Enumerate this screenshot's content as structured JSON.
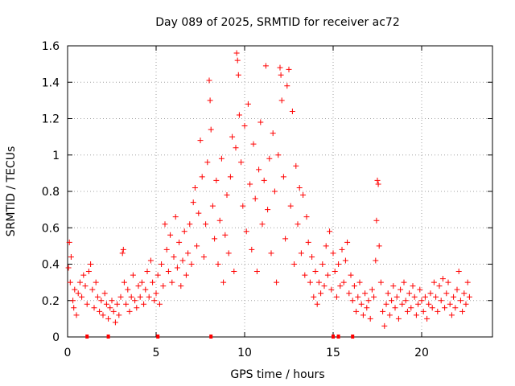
{
  "chart_data": {
    "type": "scatter",
    "title": "Day 089 of 2025, SRMTID for receiver ac72",
    "xlabel": "GPS time / hours",
    "ylabel": "SRMTID / TECUs",
    "xlim": [
      0,
      24
    ],
    "ylim": [
      0,
      1.6
    ],
    "xticks": [
      0,
      5,
      10,
      15,
      20
    ],
    "yticks": [
      0,
      0.2,
      0.4,
      0.6,
      0.8,
      1,
      1.2,
      1.4,
      1.6
    ],
    "xtick_labels": [
      "0",
      "5",
      "10",
      "15",
      "20"
    ],
    "ytick_labels": [
      "0",
      "0.2",
      "0.4",
      "0.6",
      "0.8",
      "1",
      "1.2",
      "1.4",
      "1.6"
    ],
    "grid": true,
    "marker": "+",
    "series_color": "#ff0000",
    "zero_markers_x": [
      1.1,
      2.3,
      5.1,
      8.1,
      15.0,
      15.3,
      16.1
    ],
    "series": [
      {
        "name": "SRMTID",
        "points": [
          [
            0.05,
            0.38
          ],
          [
            0.1,
            0.52
          ],
          [
            0.15,
            0.3
          ],
          [
            0.2,
            0.44
          ],
          [
            0.3,
            0.2
          ],
          [
            0.35,
            0.16
          ],
          [
            0.4,
            0.26
          ],
          [
            0.5,
            0.12
          ],
          [
            0.6,
            0.24
          ],
          [
            0.7,
            0.3
          ],
          [
            0.8,
            0.22
          ],
          [
            0.9,
            0.34
          ],
          [
            1.0,
            0.28
          ],
          [
            1.1,
            0.18
          ],
          [
            1.2,
            0.36
          ],
          [
            1.3,
            0.4
          ],
          [
            1.4,
            0.26
          ],
          [
            1.5,
            0.16
          ],
          [
            1.6,
            0.3
          ],
          [
            1.7,
            0.22
          ],
          [
            1.8,
            0.14
          ],
          [
            1.9,
            0.2
          ],
          [
            2.0,
            0.12
          ],
          [
            2.1,
            0.24
          ],
          [
            2.2,
            0.18
          ],
          [
            2.3,
            0.1
          ],
          [
            2.4,
            0.16
          ],
          [
            2.5,
            0.2
          ],
          [
            2.6,
            0.14
          ],
          [
            2.7,
            0.08
          ],
          [
            2.8,
            0.18
          ],
          [
            2.9,
            0.12
          ],
          [
            3.0,
            0.22
          ],
          [
            3.1,
            0.46
          ],
          [
            3.15,
            0.48
          ],
          [
            3.2,
            0.3
          ],
          [
            3.3,
            0.18
          ],
          [
            3.4,
            0.26
          ],
          [
            3.5,
            0.14
          ],
          [
            3.6,
            0.22
          ],
          [
            3.7,
            0.34
          ],
          [
            3.8,
            0.2
          ],
          [
            3.9,
            0.16
          ],
          [
            4.0,
            0.28
          ],
          [
            4.1,
            0.22
          ],
          [
            4.2,
            0.3
          ],
          [
            4.3,
            0.18
          ],
          [
            4.4,
            0.26
          ],
          [
            4.5,
            0.36
          ],
          [
            4.6,
            0.22
          ],
          [
            4.7,
            0.42
          ],
          [
            4.8,
            0.3
          ],
          [
            4.9,
            0.2
          ],
          [
            5.0,
            0.24
          ],
          [
            5.1,
            0.34
          ],
          [
            5.2,
            0.18
          ],
          [
            5.3,
            0.4
          ],
          [
            5.4,
            0.28
          ],
          [
            5.5,
            0.62
          ],
          [
            5.6,
            0.48
          ],
          [
            5.7,
            0.36
          ],
          [
            5.8,
            0.56
          ],
          [
            5.9,
            0.3
          ],
          [
            6.0,
            0.44
          ],
          [
            6.1,
            0.66
          ],
          [
            6.2,
            0.38
          ],
          [
            6.3,
            0.52
          ],
          [
            6.4,
            0.28
          ],
          [
            6.5,
            0.42
          ],
          [
            6.6,
            0.58
          ],
          [
            6.7,
            0.34
          ],
          [
            6.8,
            0.46
          ],
          [
            6.9,
            0.62
          ],
          [
            7.0,
            0.4
          ],
          [
            7.1,
            0.74
          ],
          [
            7.2,
            0.82
          ],
          [
            7.3,
            0.5
          ],
          [
            7.4,
            0.68
          ],
          [
            7.5,
            1.08
          ],
          [
            7.6,
            0.88
          ],
          [
            7.7,
            0.44
          ],
          [
            7.8,
            0.62
          ],
          [
            7.9,
            0.96
          ],
          [
            8.0,
            1.41
          ],
          [
            8.05,
            1.3
          ],
          [
            8.1,
            1.14
          ],
          [
            8.2,
            0.72
          ],
          [
            8.3,
            0.54
          ],
          [
            8.4,
            0.86
          ],
          [
            8.5,
            0.4
          ],
          [
            8.6,
            0.64
          ],
          [
            8.7,
            0.98
          ],
          [
            8.8,
            0.3
          ],
          [
            8.9,
            0.56
          ],
          [
            9.0,
            0.78
          ],
          [
            9.1,
            0.46
          ],
          [
            9.2,
            0.88
          ],
          [
            9.3,
            1.1
          ],
          [
            9.4,
            0.36
          ],
          [
            9.5,
            1.04
          ],
          [
            9.55,
            1.56
          ],
          [
            9.6,
            1.52
          ],
          [
            9.65,
            1.44
          ],
          [
            9.7,
            1.22
          ],
          [
            9.8,
            0.96
          ],
          [
            9.9,
            0.72
          ],
          [
            10.0,
            1.16
          ],
          [
            10.1,
            0.58
          ],
          [
            10.2,
            1.28
          ],
          [
            10.3,
            0.84
          ],
          [
            10.4,
            0.48
          ],
          [
            10.5,
            1.06
          ],
          [
            10.6,
            0.76
          ],
          [
            10.7,
            0.36
          ],
          [
            10.8,
            0.92
          ],
          [
            10.9,
            1.18
          ],
          [
            11.0,
            0.62
          ],
          [
            11.1,
            0.86
          ],
          [
            11.2,
            1.49
          ],
          [
            11.3,
            0.7
          ],
          [
            11.4,
            0.98
          ],
          [
            11.5,
            0.46
          ],
          [
            11.6,
            1.12
          ],
          [
            11.7,
            0.8
          ],
          [
            11.8,
            0.3
          ],
          [
            11.9,
            1.0
          ],
          [
            12.0,
            1.48
          ],
          [
            12.05,
            1.44
          ],
          [
            12.1,
            1.3
          ],
          [
            12.2,
            0.88
          ],
          [
            12.3,
            0.54
          ],
          [
            12.4,
            1.38
          ],
          [
            12.5,
            1.47
          ],
          [
            12.6,
            0.72
          ],
          [
            12.7,
            1.24
          ],
          [
            12.8,
            0.4
          ],
          [
            12.9,
            0.94
          ],
          [
            13.0,
            0.62
          ],
          [
            13.1,
            0.82
          ],
          [
            13.2,
            0.46
          ],
          [
            13.3,
            0.78
          ],
          [
            13.4,
            0.34
          ],
          [
            13.5,
            0.66
          ],
          [
            13.6,
            0.52
          ],
          [
            13.7,
            0.3
          ],
          [
            13.8,
            0.44
          ],
          [
            13.9,
            0.22
          ],
          [
            14.0,
            0.36
          ],
          [
            14.1,
            0.18
          ],
          [
            14.2,
            0.3
          ],
          [
            14.3,
            0.24
          ],
          [
            14.4,
            0.4
          ],
          [
            14.5,
            0.28
          ],
          [
            14.6,
            0.5
          ],
          [
            14.7,
            0.34
          ],
          [
            14.8,
            0.58
          ],
          [
            14.9,
            0.26
          ],
          [
            15.0,
            0.46
          ],
          [
            15.1,
            0.36
          ],
          [
            15.2,
            0.22
          ],
          [
            15.3,
            0.4
          ],
          [
            15.4,
            0.28
          ],
          [
            15.5,
            0.48
          ],
          [
            15.6,
            0.3
          ],
          [
            15.7,
            0.42
          ],
          [
            15.8,
            0.52
          ],
          [
            15.9,
            0.24
          ],
          [
            16.0,
            0.34
          ],
          [
            16.1,
            0.2
          ],
          [
            16.2,
            0.28
          ],
          [
            16.3,
            0.14
          ],
          [
            16.4,
            0.22
          ],
          [
            16.5,
            0.3
          ],
          [
            16.6,
            0.18
          ],
          [
            16.7,
            0.12
          ],
          [
            16.8,
            0.24
          ],
          [
            16.9,
            0.16
          ],
          [
            17.0,
            0.2
          ],
          [
            17.1,
            0.1
          ],
          [
            17.2,
            0.26
          ],
          [
            17.3,
            0.22
          ],
          [
            17.4,
            0.42
          ],
          [
            17.45,
            0.64
          ],
          [
            17.5,
            0.86
          ],
          [
            17.55,
            0.84
          ],
          [
            17.6,
            0.5
          ],
          [
            17.7,
            0.3
          ],
          [
            17.8,
            0.14
          ],
          [
            17.9,
            0.06
          ],
          [
            18.0,
            0.18
          ],
          [
            18.1,
            0.24
          ],
          [
            18.2,
            0.12
          ],
          [
            18.3,
            0.2
          ],
          [
            18.4,
            0.28
          ],
          [
            18.5,
            0.16
          ],
          [
            18.6,
            0.22
          ],
          [
            18.7,
            0.1
          ],
          [
            18.8,
            0.26
          ],
          [
            18.9,
            0.18
          ],
          [
            19.0,
            0.3
          ],
          [
            19.1,
            0.2
          ],
          [
            19.2,
            0.14
          ],
          [
            19.3,
            0.24
          ],
          [
            19.4,
            0.16
          ],
          [
            19.5,
            0.28
          ],
          [
            19.6,
            0.22
          ],
          [
            19.7,
            0.12
          ],
          [
            19.8,
            0.18
          ],
          [
            19.9,
            0.26
          ],
          [
            20.0,
            0.2
          ],
          [
            20.1,
            0.14
          ],
          [
            20.2,
            0.22
          ],
          [
            20.3,
            0.1
          ],
          [
            20.4,
            0.18
          ],
          [
            20.5,
            0.24
          ],
          [
            20.6,
            0.16
          ],
          [
            20.7,
            0.3
          ],
          [
            20.8,
            0.22
          ],
          [
            20.9,
            0.14
          ],
          [
            21.0,
            0.28
          ],
          [
            21.1,
            0.2
          ],
          [
            21.2,
            0.32
          ],
          [
            21.3,
            0.16
          ],
          [
            21.4,
            0.24
          ],
          [
            21.5,
            0.3
          ],
          [
            21.6,
            0.18
          ],
          [
            21.7,
            0.12
          ],
          [
            21.8,
            0.22
          ],
          [
            21.9,
            0.16
          ],
          [
            22.0,
            0.26
          ],
          [
            22.1,
            0.36
          ],
          [
            22.2,
            0.2
          ],
          [
            22.3,
            0.14
          ],
          [
            22.4,
            0.24
          ],
          [
            22.5,
            0.18
          ],
          [
            22.6,
            0.3
          ],
          [
            22.7,
            0.22
          ]
        ]
      }
    ]
  }
}
